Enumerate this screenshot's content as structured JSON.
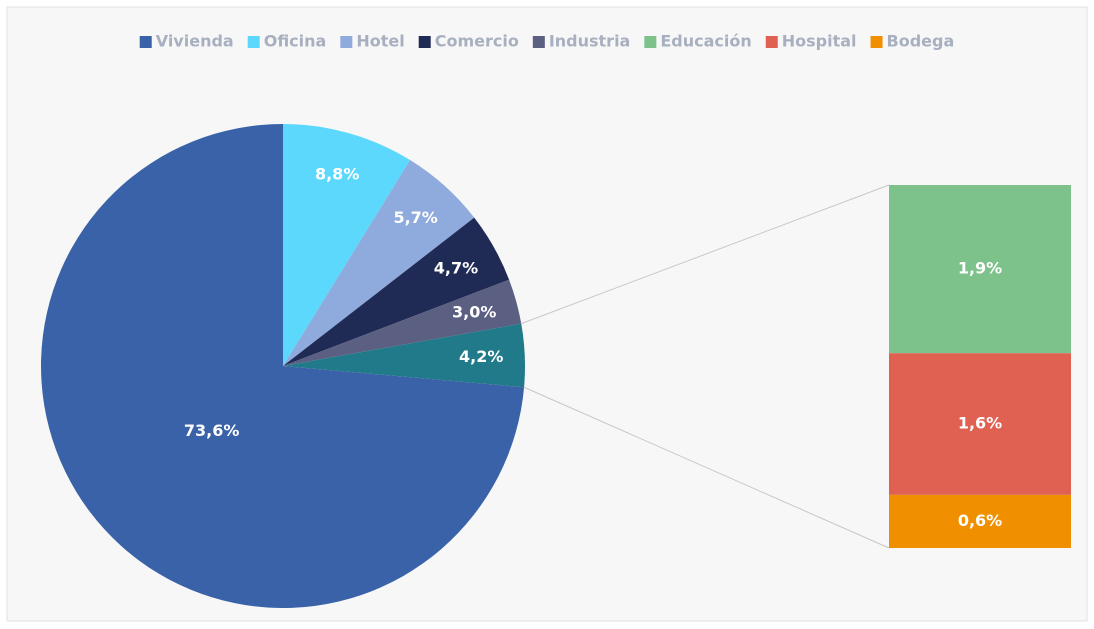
{
  "chart_data": {
    "type": "pie_of_bar",
    "pie": {
      "categories": [
        "Vivienda",
        "Oficina",
        "Hotel",
        "Comercio",
        "Industria",
        null
      ],
      "values": [
        73.6,
        8.8,
        5.7,
        4.7,
        3.0,
        4.2
      ],
      "value_labels": [
        "73,6%",
        "8,8%",
        "5,7%",
        "4,7%",
        "3,0%",
        "4,2%"
      ],
      "colors": [
        "#3a62a8",
        "#5bd8fc",
        "#8faadc",
        "#1f2a55",
        "#5b5f82",
        "#217a8a"
      ]
    },
    "bar": {
      "categories": [
        "Educación",
        "Hospital",
        "Bodega"
      ],
      "values": [
        1.9,
        1.6,
        0.6
      ],
      "value_labels": [
        "1,9%",
        "1,6%",
        "0,6%"
      ],
      "colors": [
        "#7cc28a",
        "#e06052",
        "#f09000"
      ]
    },
    "legend": "top"
  }
}
